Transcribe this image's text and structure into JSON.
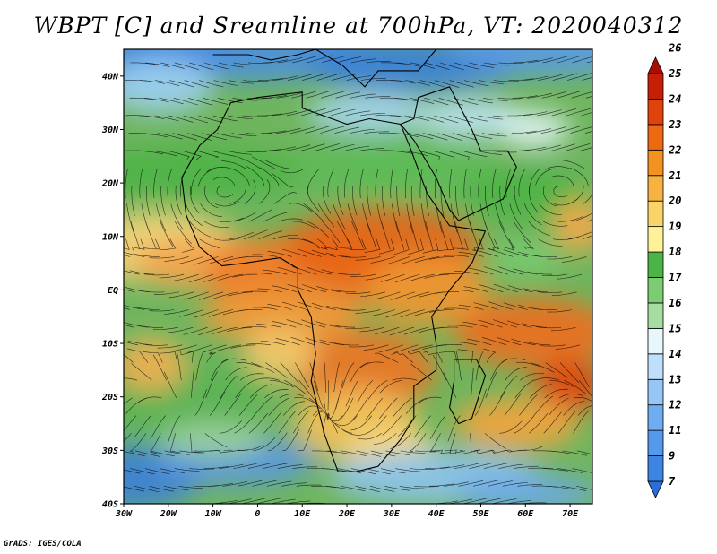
{
  "title": "WBPT [C] and Sreamline at 700hPa, VT: 2020040312",
  "credit": "GrADS: IGES/COLA",
  "map": {
    "lon_range": [
      -30,
      75
    ],
    "lat_range": [
      -40,
      45
    ],
    "lon_ticks": [
      {
        "value": -30,
        "label": "30W"
      },
      {
        "value": -20,
        "label": "20W"
      },
      {
        "value": -10,
        "label": "10W"
      },
      {
        "value": 0,
        "label": "0"
      },
      {
        "value": 10,
        "label": "10E"
      },
      {
        "value": 20,
        "label": "20E"
      },
      {
        "value": 30,
        "label": "30E"
      },
      {
        "value": 40,
        "label": "40E"
      },
      {
        "value": 50,
        "label": "50E"
      },
      {
        "value": 60,
        "label": "60E"
      },
      {
        "value": 70,
        "label": "70E"
      }
    ],
    "lat_ticks": [
      {
        "value": 40,
        "label": "40N"
      },
      {
        "value": 30,
        "label": "30N"
      },
      {
        "value": 20,
        "label": "20N"
      },
      {
        "value": 10,
        "label": "10N"
      },
      {
        "value": 0,
        "label": "EQ"
      },
      {
        "value": -10,
        "label": "10S"
      },
      {
        "value": -20,
        "label": "20S"
      },
      {
        "value": -30,
        "label": "30S"
      },
      {
        "value": -40,
        "label": "40S"
      }
    ]
  },
  "colorbar": {
    "levels": [
      "7",
      "9",
      "11",
      "12",
      "13",
      "14",
      "15",
      "16",
      "17",
      "18",
      "19",
      "20",
      "21",
      "22",
      "23",
      "24",
      "25",
      "26"
    ],
    "colors": [
      "#2a6fd9",
      "#3d84e3",
      "#5599ea",
      "#70adf0",
      "#97c6f6",
      "#bfe0fa",
      "#e6f6fb",
      "#a5dea0",
      "#7bcc72",
      "#4cb447",
      "#fff09a",
      "#fbd468",
      "#f7b342",
      "#f39220",
      "#ee6a12",
      "#e0420c",
      "#c71e06",
      "#a80d04"
    ]
  }
}
